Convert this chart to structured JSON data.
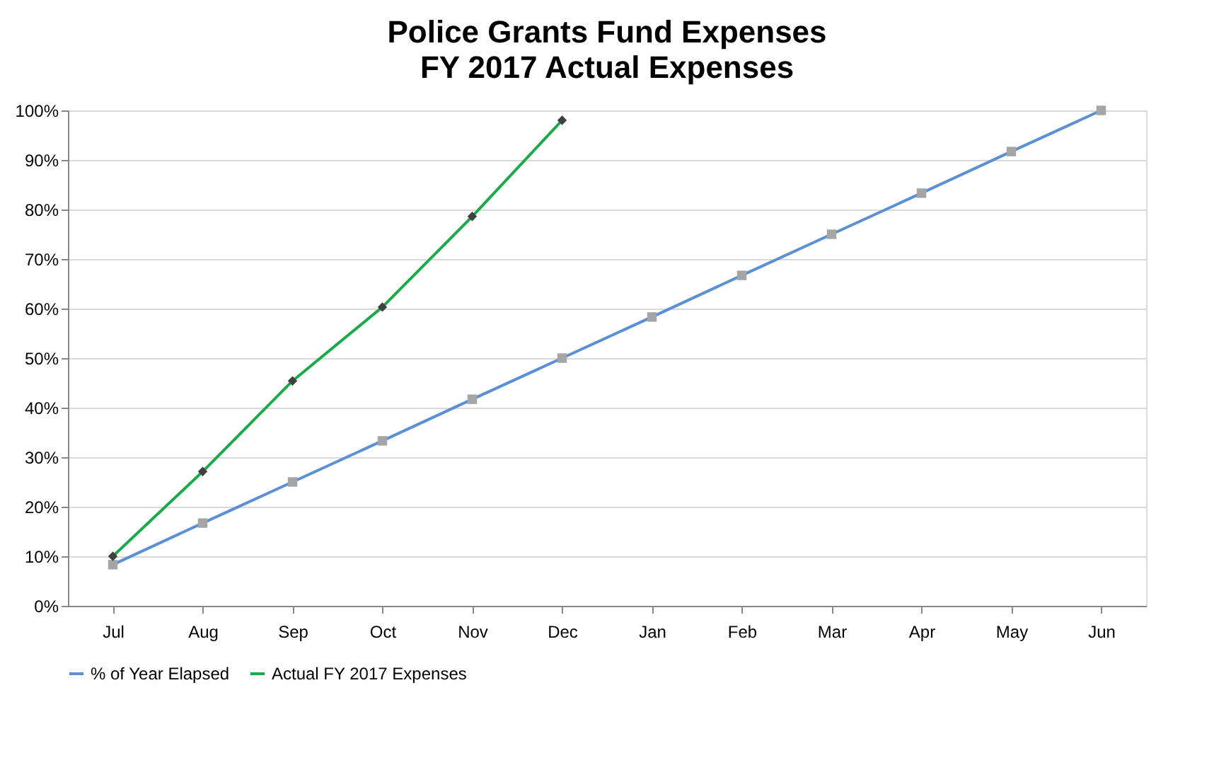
{
  "chart_data": {
    "type": "line",
    "title": "Police Grants Fund Expenses",
    "subtitle": "FY 2017 Actual Expenses",
    "categories": [
      "Jul",
      "Aug",
      "Sep",
      "Oct",
      "Nov",
      "Dec",
      "Jan",
      "Feb",
      "Mar",
      "Apr",
      "May",
      "Jun"
    ],
    "series": [
      {
        "name": "% of Year Elapsed",
        "color": "#5b8fd6",
        "marker": "square",
        "values": [
          8.3,
          16.7,
          25,
          33.3,
          41.7,
          50,
          58.3,
          66.7,
          75,
          83.3,
          91.7,
          100
        ]
      },
      {
        "name": "Actual FY 2017 Expenses",
        "color": "#1aaa4a",
        "marker": "diamond",
        "values": [
          10,
          27.1,
          45.4,
          60.3,
          78.6,
          98,
          null,
          null,
          null,
          null,
          null,
          null
        ]
      }
    ],
    "ylim": [
      0,
      100
    ],
    "yticks": [
      {
        "value": 0,
        "label": "0%"
      },
      {
        "value": 10,
        "label": "10%"
      },
      {
        "value": 20,
        "label": "20%"
      },
      {
        "value": 30,
        "label": "30%"
      },
      {
        "value": 40,
        "label": "40%"
      },
      {
        "value": 50,
        "label": "50%"
      },
      {
        "value": 60,
        "label": "60%"
      },
      {
        "value": 70,
        "label": "70%"
      },
      {
        "value": 80,
        "label": "80%"
      },
      {
        "value": 90,
        "label": "90%"
      },
      {
        "value": 100,
        "label": "100%"
      }
    ],
    "grid": "y",
    "legend": "bottom",
    "line_style": "solid"
  }
}
